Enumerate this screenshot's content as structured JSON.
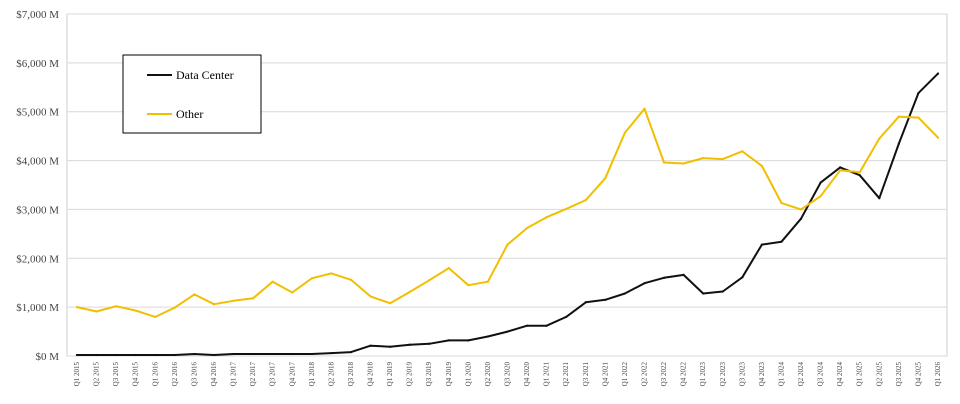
{
  "chart_data": {
    "type": "line",
    "title": "",
    "xlabel": "",
    "ylabel": "",
    "ylim": [
      0,
      7000
    ],
    "yticks": [
      {
        "value": 0,
        "label": "$0 M"
      },
      {
        "value": 1000,
        "label": "$1,000 M"
      },
      {
        "value": 2000,
        "label": "$2,000 M"
      },
      {
        "value": 3000,
        "label": "$3,000 M"
      },
      {
        "value": 4000,
        "label": "$4,000 M"
      },
      {
        "value": 5000,
        "label": "$5,000 M"
      },
      {
        "value": 6000,
        "label": "$6,000 M"
      },
      {
        "value": 7000,
        "label": "$7,000 M"
      }
    ],
    "grid": true,
    "legend": "upper-left inset",
    "categories": [
      "Q1 2015",
      "Q2 2015",
      "Q3 2015",
      "Q4 2015",
      "Q1 2016",
      "Q2 2016",
      "Q3 2016",
      "Q4 2016",
      "Q1 2017",
      "Q2 2017",
      "Q3 2017",
      "Q4 2017",
      "Q1 2018",
      "Q2 2018",
      "Q3 2018",
      "Q4 2018",
      "Q1 2019",
      "Q2 2019",
      "Q3 2019",
      "Q4 2019",
      "Q1 2020",
      "Q2 2020",
      "Q3 2020",
      "Q4 2020",
      "Q1 2021",
      "Q2 2021",
      "Q3 2021",
      "Q4 2021",
      "Q1 2022",
      "Q2 2022",
      "Q3 2022",
      "Q4 2022",
      "Q1 2023",
      "Q2 2023",
      "Q3 2023",
      "Q4 2023",
      "Q1 2024",
      "Q2 2024",
      "Q3 2024",
      "Q4 2024",
      "Q1 2025",
      "Q2 2025",
      "Q3 2025",
      "Q4 2025",
      "Q1 2026"
    ],
    "series": [
      {
        "name": "Data Center",
        "color": "#111111",
        "values": [
          20,
          20,
          20,
          20,
          20,
          20,
          40,
          20,
          40,
          40,
          40,
          40,
          40,
          60,
          80,
          210,
          190,
          230,
          250,
          320,
          320,
          400,
          500,
          620,
          620,
          800,
          1100,
          1150,
          1280,
          1490,
          1600,
          1660,
          1280,
          1320,
          1610,
          2280,
          2340,
          2810,
          3550,
          3860,
          3700,
          3230,
          4350,
          5380,
          5780
        ]
      },
      {
        "name": "Other",
        "color": "#F2BE00",
        "values": [
          1000,
          910,
          1020,
          930,
          800,
          990,
          1260,
          1060,
          1130,
          1180,
          1520,
          1300,
          1590,
          1690,
          1560,
          1220,
          1080,
          1310,
          1550,
          1800,
          1450,
          1520,
          2280,
          2620,
          2840,
          3010,
          3190,
          3640,
          4570,
          5060,
          3960,
          3940,
          4050,
          4030,
          4190,
          3890,
          3130,
          3000,
          3270,
          3800,
          3760,
          4450,
          4900,
          4880,
          4470
        ]
      }
    ]
  }
}
